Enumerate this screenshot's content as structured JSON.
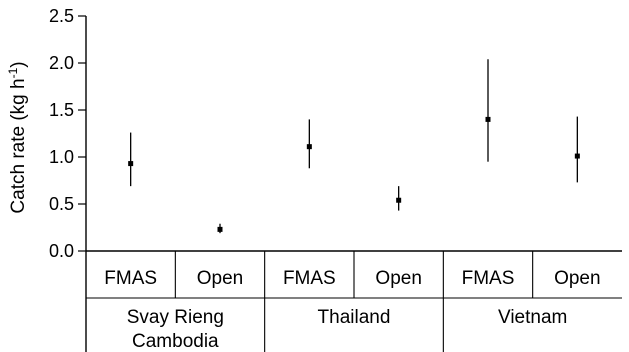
{
  "chart_data": {
    "type": "scatter",
    "title": "",
    "ylabel_main": "Catch rate (kg h",
    "ylabel_sup": "-1",
    "ylabel_end": ")",
    "ylim": [
      0,
      2.5
    ],
    "yticks": [
      "0.0",
      "0.5",
      "1.0",
      "1.5",
      "2.0",
      "2.5"
    ],
    "tick_values": [
      0,
      0.5,
      1.0,
      1.5,
      2.0,
      2.5
    ],
    "groups": [
      {
        "lines": [
          "Svay Rieng",
          "Cambodia"
        ]
      },
      {
        "lines": [
          "Thailand"
        ]
      },
      {
        "lines": [
          "Vietnam"
        ]
      }
    ],
    "categories": [
      "FMAS",
      "Open",
      "FMAS",
      "Open",
      "FMAS",
      "Open"
    ],
    "points": [
      {
        "group": "Svay Rieng Cambodia",
        "category": "FMAS",
        "value": 0.93,
        "low": 0.69,
        "high": 1.26
      },
      {
        "group": "Svay Rieng Cambodia",
        "category": "Open",
        "value": 0.23,
        "low": 0.19,
        "high": 0.29
      },
      {
        "group": "Thailand",
        "category": "FMAS",
        "value": 1.11,
        "low": 0.88,
        "high": 1.4
      },
      {
        "group": "Thailand",
        "category": "Open",
        "value": 0.54,
        "low": 0.43,
        "high": 0.69
      },
      {
        "group": "Vietnam",
        "category": "FMAS",
        "value": 1.4,
        "low": 0.95,
        "high": 2.04
      },
      {
        "group": "Vietnam",
        "category": "Open",
        "value": 1.01,
        "low": 0.73,
        "high": 1.43
      }
    ]
  }
}
